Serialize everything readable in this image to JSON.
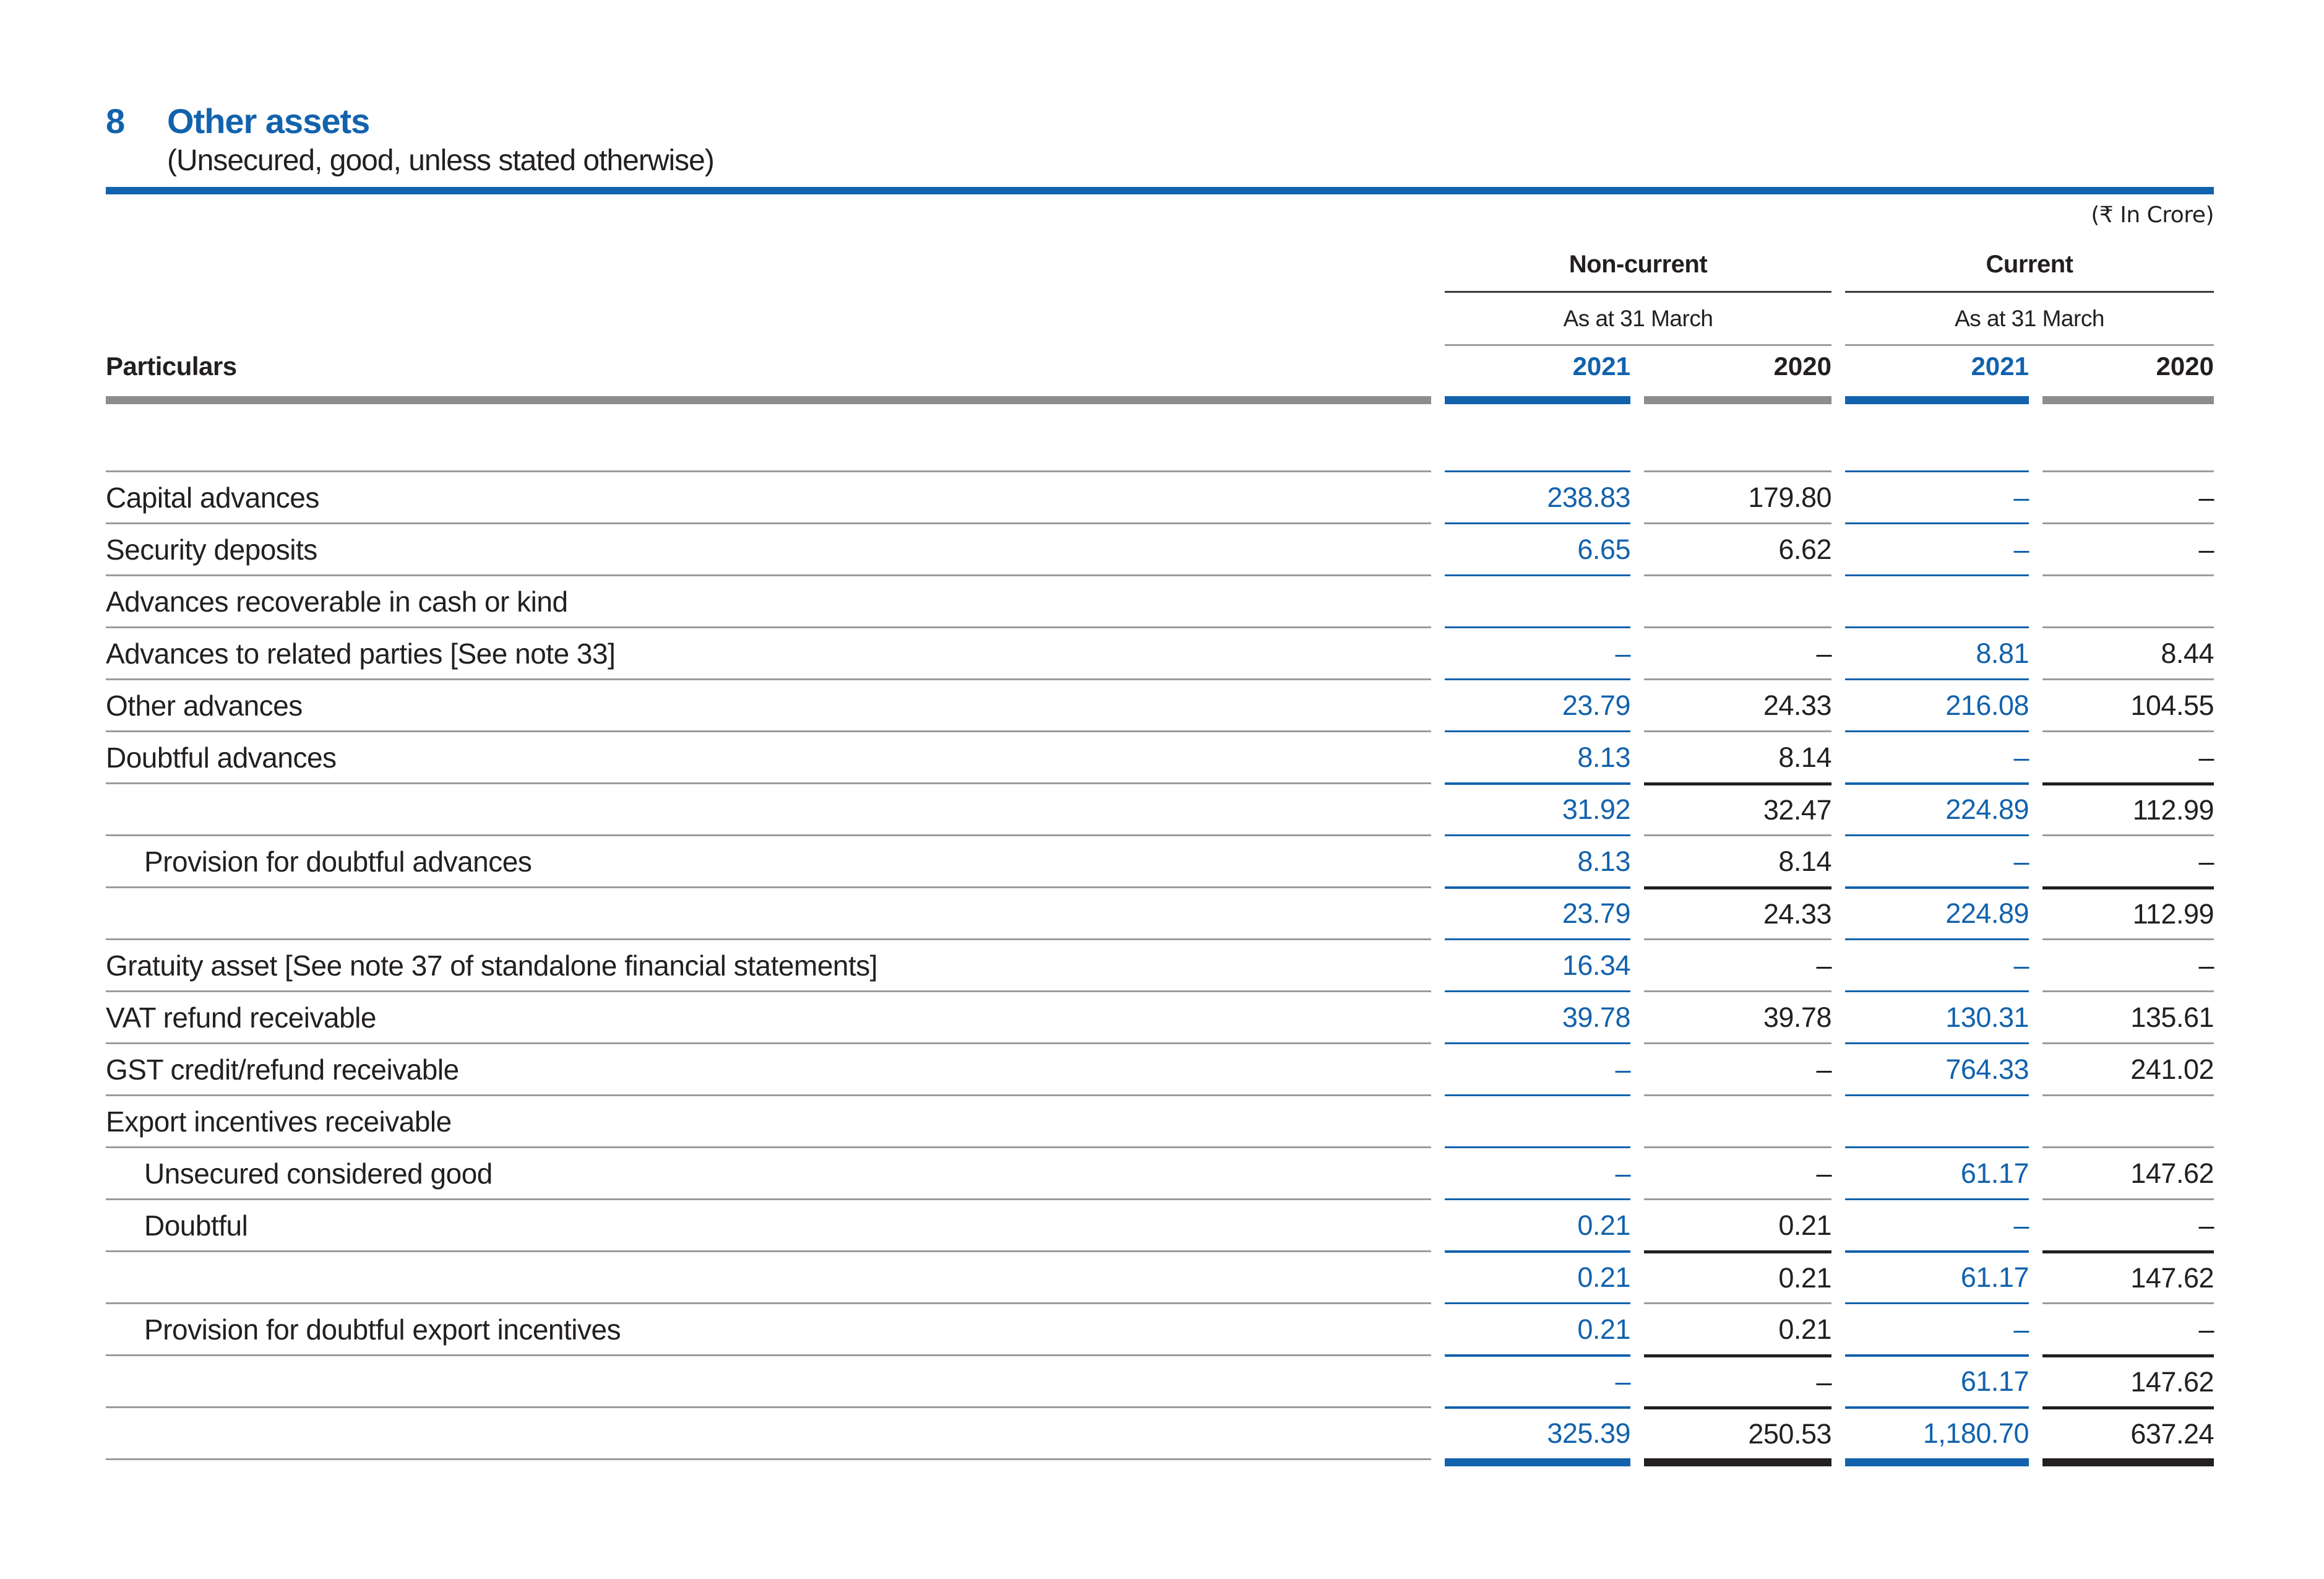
{
  "note": {
    "number": "8",
    "title": "Other assets",
    "subtitle": "(Unsecured, good, unless stated otherwise)",
    "unit_label": "(₹ In Crore)"
  },
  "colors": {
    "accent_blue": "#1262ad",
    "ink": "#231f20",
    "gray_line": "#9c9c9c",
    "gray_bar": "#8d8d8d"
  },
  "table": {
    "particulars_label": "Particulars",
    "groups": [
      {
        "label": "Non-current",
        "sub": "As at 31 March",
        "years": [
          "2021",
          "2020"
        ]
      },
      {
        "label": "Current",
        "sub": "As at 31 March",
        "years": [
          "2021",
          "2020"
        ]
      }
    ],
    "rows": [
      {
        "label": "Capital advances",
        "indent": 0,
        "type": "normal",
        "values": [
          "238.83",
          "179.80",
          "–",
          "–"
        ]
      },
      {
        "label": "Security deposits",
        "indent": 0,
        "type": "normal",
        "values": [
          "6.65",
          "6.62",
          "–",
          "–"
        ]
      },
      {
        "label": "Advances recoverable in cash or kind",
        "indent": 0,
        "type": "normal",
        "values": [
          "",
          "",
          "",
          ""
        ]
      },
      {
        "label": "Advances to related parties [See note 33]",
        "indent": 0,
        "type": "normal",
        "values": [
          "–",
          "–",
          "8.81",
          "8.44"
        ]
      },
      {
        "label": "Other advances",
        "indent": 0,
        "type": "normal",
        "values": [
          "23.79",
          "24.33",
          "216.08",
          "104.55"
        ]
      },
      {
        "label": "Doubtful advances",
        "indent": 0,
        "type": "normal",
        "values": [
          "8.13",
          "8.14",
          "–",
          "–"
        ]
      },
      {
        "label": "",
        "indent": 0,
        "type": "subtotal",
        "values": [
          "31.92",
          "32.47",
          "224.89",
          "112.99"
        ]
      },
      {
        "label": "Provision for doubtful advances",
        "indent": 1,
        "type": "normal",
        "values": [
          "8.13",
          "8.14",
          "–",
          "–"
        ]
      },
      {
        "label": "",
        "indent": 0,
        "type": "subtotal",
        "values": [
          "23.79",
          "24.33",
          "224.89",
          "112.99"
        ]
      },
      {
        "label": "Gratuity asset [See note 37 of standalone financial statements]",
        "indent": 0,
        "type": "normal",
        "values": [
          "16.34",
          "–",
          "–",
          "–"
        ]
      },
      {
        "label": "VAT refund receivable",
        "indent": 0,
        "type": "normal",
        "values": [
          "39.78",
          "39.78",
          "130.31",
          "135.61"
        ]
      },
      {
        "label": "GST credit/refund receivable",
        "indent": 0,
        "type": "normal",
        "values": [
          "–",
          "–",
          "764.33",
          "241.02"
        ]
      },
      {
        "label": "Export incentives receivable",
        "indent": 0,
        "type": "normal",
        "values": [
          "",
          "",
          "",
          ""
        ]
      },
      {
        "label": "Unsecured considered good",
        "indent": 1,
        "type": "normal",
        "values": [
          "–",
          "–",
          "61.17",
          "147.62"
        ]
      },
      {
        "label": "Doubtful",
        "indent": 1,
        "type": "normal",
        "values": [
          "0.21",
          "0.21",
          "–",
          "–"
        ]
      },
      {
        "label": "",
        "indent": 0,
        "type": "subtotal",
        "values": [
          "0.21",
          "0.21",
          "61.17",
          "147.62"
        ]
      },
      {
        "label": "Provision for doubtful export incentives",
        "indent": 1,
        "type": "normal",
        "values": [
          "0.21",
          "0.21",
          "–",
          "–"
        ]
      },
      {
        "label": "",
        "indent": 0,
        "type": "subtotal",
        "values": [
          "–",
          "–",
          "61.17",
          "147.62"
        ]
      },
      {
        "label": "",
        "indent": 0,
        "type": "grandtotal",
        "values": [
          "325.39",
          "250.53",
          "1,180.70",
          "637.24"
        ]
      }
    ]
  }
}
